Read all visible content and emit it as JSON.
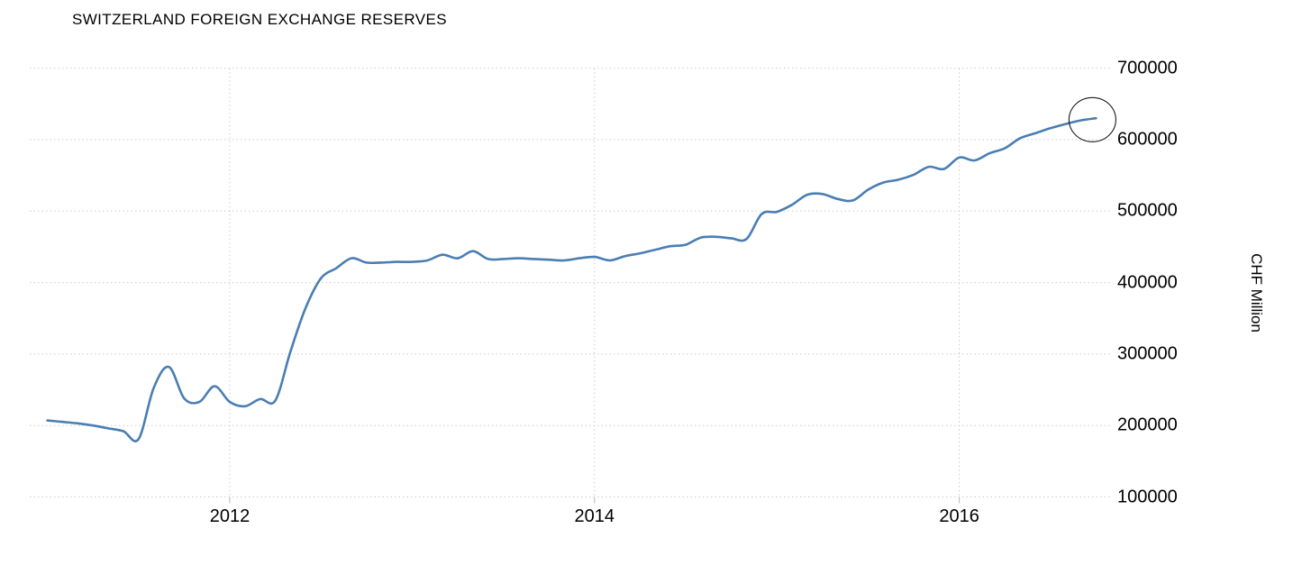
{
  "title": "SWITZERLAND FOREIGN EXCHANGE RESERVES",
  "axes": {
    "y": {
      "unit": "CHF Million",
      "min": 100000,
      "max": 700000,
      "tick_step": 100000,
      "ticks": [
        "100000",
        "200000",
        "300000",
        "400000",
        "500000",
        "600000",
        "700000"
      ]
    },
    "x": {
      "ticks": [
        "2012",
        "2014",
        "2016"
      ],
      "tick_years": [
        2012,
        2014,
        2016
      ]
    }
  },
  "colors": {
    "line": "#4a7eb3",
    "grid": "#cbcbcb",
    "text": "#000000",
    "annotation": "#1a1a1a",
    "background": "#ffffff"
  },
  "annotation": {
    "shape": "circle",
    "x_year": 2016.73,
    "value": 628000
  },
  "chart_data": {
    "type": "line",
    "title": "SWITZERLAND FOREIGN EXCHANGE RESERVES",
    "xlabel": "",
    "ylabel": "CHF Million",
    "ylim": [
      100000,
      700000
    ],
    "xlim": [
      2010.93,
      2016.97
    ],
    "grid": true,
    "legend_position": "none",
    "x_labels": [
      "2011-01",
      "2011-02",
      "2011-03",
      "2011-04",
      "2011-05",
      "2011-06",
      "2011-07",
      "2011-08",
      "2011-09",
      "2011-10",
      "2011-11",
      "2011-12",
      "2012-01",
      "2012-02",
      "2012-03",
      "2012-04",
      "2012-05",
      "2012-06",
      "2012-07",
      "2012-08",
      "2012-09",
      "2012-10",
      "2012-11",
      "2012-12",
      "2013-01",
      "2013-02",
      "2013-03",
      "2013-04",
      "2013-05",
      "2013-06",
      "2013-07",
      "2013-08",
      "2013-09",
      "2013-10",
      "2013-11",
      "2013-12",
      "2014-01",
      "2014-02",
      "2014-03",
      "2014-04",
      "2014-05",
      "2014-06",
      "2014-07",
      "2014-08",
      "2014-09",
      "2014-10",
      "2014-11",
      "2014-12",
      "2015-01",
      "2015-02",
      "2015-03",
      "2015-04",
      "2015-05",
      "2015-06",
      "2015-07",
      "2015-08",
      "2015-09",
      "2015-10",
      "2015-11",
      "2015-12",
      "2016-01",
      "2016-02",
      "2016-03",
      "2016-04",
      "2016-05",
      "2016-06",
      "2016-07",
      "2016-08",
      "2016-09",
      "2016-10"
    ],
    "values": [
      207000,
      205000,
      203000,
      200000,
      196000,
      192000,
      181000,
      253000,
      282000,
      238000,
      233000,
      255000,
      233000,
      227000,
      237000,
      235000,
      304000,
      365000,
      406000,
      420000,
      434000,
      428000,
      428000,
      429000,
      429000,
      431000,
      439000,
      434000,
      444000,
      433000,
      433000,
      434000,
      433000,
      432000,
      431000,
      434000,
      436000,
      431000,
      437000,
      441000,
      446000,
      451000,
      453000,
      463000,
      464000,
      462000,
      461000,
      496000,
      499000,
      509000,
      523000,
      524000,
      517000,
      515000,
      530000,
      540000,
      544000,
      551000,
      562000,
      559000,
      575000,
      571000,
      581000,
      588000,
      602000,
      609000,
      616000,
      622000,
      627000,
      630000
    ]
  }
}
